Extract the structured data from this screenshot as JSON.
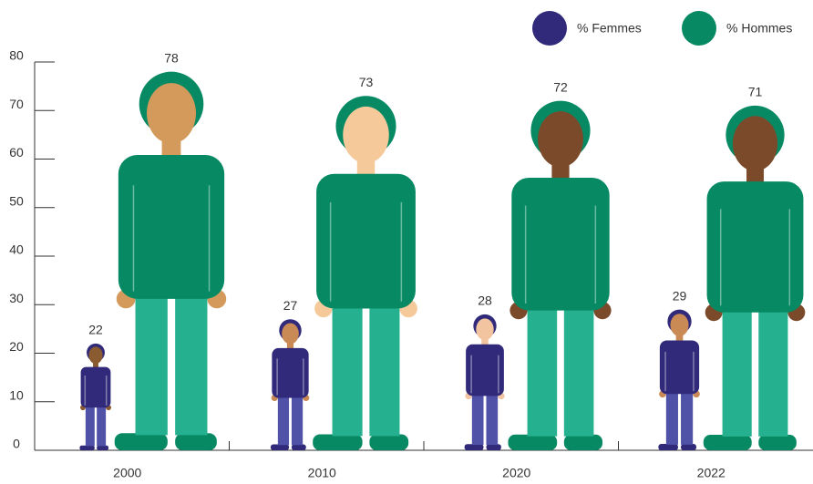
{
  "chart_data": {
    "type": "pictorial-bar",
    "categories": [
      "2000",
      "2010",
      "2020",
      "2022"
    ],
    "series": [
      {
        "name": "% Femmes",
        "color": "#312a7a",
        "values": [
          22,
          27,
          28,
          29
        ]
      },
      {
        "name": "% Hommes",
        "color": "#078a63",
        "values": [
          78,
          73,
          72,
          71
        ]
      }
    ],
    "ylim": [
      0,
      80
    ],
    "yticks": [
      0,
      10,
      20,
      30,
      40,
      50,
      60,
      70,
      80
    ],
    "legend": "top-right"
  }
}
